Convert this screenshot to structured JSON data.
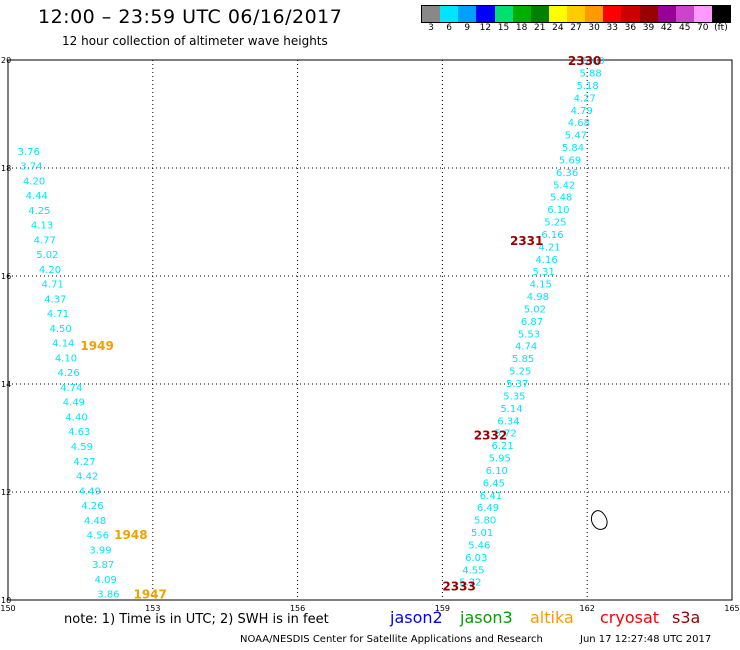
{
  "header": {
    "title": "12:00 – 23:59 UTC 06/16/2017",
    "subtitle": "12 hour collection of altimeter wave heights"
  },
  "colorscale": {
    "labels": [
      "3",
      "6",
      "9",
      "12",
      "15",
      "18",
      "21",
      "24",
      "27",
      "30",
      "33",
      "36",
      "39",
      "42",
      "45",
      "70",
      "(ft)"
    ],
    "colors": [
      "#888888",
      "#00e5ff",
      "#00a0ff",
      "#0000ff",
      "#00e070",
      "#00b000",
      "#008000",
      "#ffff00",
      "#ffcc00",
      "#ff9900",
      "#ff0000",
      "#cc0000",
      "#990000",
      "#990099",
      "#cc44cc",
      "#ff99ff",
      "#000000"
    ]
  },
  "map": {
    "lon_ticks": [
      "150",
      "153",
      "156",
      "159",
      "162",
      "165"
    ],
    "lat_ticks": [
      "10",
      "12",
      "14",
      "16",
      "18",
      "20"
    ],
    "lon_range": [
      150,
      165
    ],
    "lat_range": [
      10,
      20
    ]
  },
  "tracks": [
    {
      "name": "left",
      "color": "#00e5ff",
      "start": {
        "lon": 150.2,
        "lat": 18.3
      },
      "end": {
        "lon": 151.85,
        "lat": 10.1
      },
      "values": [
        "3.76",
        "3.74",
        "4.20",
        "4.44",
        "4.25",
        "4.13",
        "4.77",
        "5.02",
        "4.20",
        "4.71",
        "4.37",
        "4.71",
        "4.50",
        "4.14",
        "4.10",
        "4.26",
        "4.74",
        "4.49",
        "4.40",
        "4.63",
        "4.59",
        "4.27",
        "4.42",
        "4.49",
        "4.26",
        "4.48",
        "4.56",
        "3.99",
        "3.87",
        "4.09",
        "3.86"
      ]
    },
    {
      "name": "right",
      "color": "#00e5ff",
      "start": {
        "lon": 161.9,
        "lat": 19.98
      },
      "end": {
        "lon": 159.35,
        "lat": 10.32
      },
      "values": [
        "5.60",
        "5.88",
        "5.18",
        "4.27",
        "4.79",
        "4.68",
        "5.47",
        "5.84",
        "5.69",
        "6.36",
        "5.42",
        "5.48",
        "6.10",
        "5.25",
        "6.16",
        "4.21",
        "4.16",
        "5.31",
        "4.15",
        "4.98",
        "5.02",
        "6.87",
        "5.53",
        "4.74",
        "5.85",
        "5.25",
        "5.37",
        "5.35",
        "5.14",
        "6.34",
        "5.72",
        "6.21",
        "5.95",
        "6.10",
        "6.45",
        "6.41",
        "6.49",
        "5.80",
        "5.01",
        "5.46",
        "6.03",
        "4.55",
        "5.22"
      ]
    }
  ],
  "time_labels": [
    {
      "text": "1949",
      "lon": 151.5,
      "lat": 14.7,
      "color": "#f0a000"
    },
    {
      "text": "1948",
      "lon": 152.2,
      "lat": 11.2,
      "color": "#f0a000"
    },
    {
      "text": "1947",
      "lon": 152.6,
      "lat": 10.1,
      "color": "#f0a000"
    },
    {
      "text": "2330",
      "lon": 161.6,
      "lat": 19.98,
      "color": "#990000"
    },
    {
      "text": "2331",
      "lon": 160.4,
      "lat": 16.65,
      "color": "#990000"
    },
    {
      "text": "2332",
      "lon": 159.65,
      "lat": 13.05,
      "color": "#990000"
    },
    {
      "text": "2333",
      "lon": 159.0,
      "lat": 10.25,
      "color": "#990000"
    }
  ],
  "coastline_label": "",
  "notes": {
    "note": "note: 1) Time is in UTC; 2) SWH is in feet",
    "satellites": [
      {
        "name": "jason2",
        "color": "#0000ff"
      },
      {
        "name": "jason3",
        "color": "#00a000"
      },
      {
        "name": "altika",
        "color": "#ff9900"
      },
      {
        "name": "cryosat",
        "color": "#ff0000"
      },
      {
        "name": "s3a",
        "color": "#990000"
      }
    ]
  },
  "footer": {
    "center": "NOAA/NESDIS Center for Satellite Applications and Research",
    "right": "Jun 17 12:27:48 UTC 2017"
  }
}
